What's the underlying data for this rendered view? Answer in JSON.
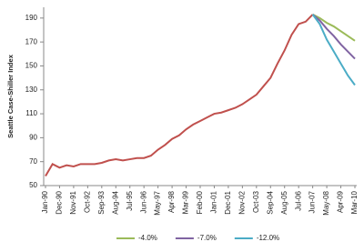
{
  "chart_data": {
    "type": "line",
    "y_label": "Seattle Case-Shiller Index",
    "categories": [
      "Jan-90",
      null,
      "Dec-90",
      null,
      "Nov-91",
      null,
      "Oct-92",
      null,
      "Sep-93",
      null,
      "Aug-94",
      null,
      "Jul-95",
      null,
      "Jun-96",
      null,
      "May-97",
      null,
      "Apr-98",
      null,
      "Mar-99",
      null,
      "Feb-00",
      null,
      "Jan-01",
      null,
      "Dec-01",
      null,
      "Nov-02",
      null,
      "Oct-03",
      null,
      "Sep-04",
      null,
      "Aug-05",
      null,
      "Jul-06",
      null,
      "Jun-07",
      null,
      "May-08",
      null,
      "Apr-09",
      null,
      "Mar-10"
    ],
    "series": [
      {
        "color": "#c0504d",
        "values": [
          58,
          68,
          65,
          67,
          66,
          68,
          68,
          68,
          69,
          71,
          72,
          71,
          72,
          73,
          73,
          75,
          80,
          84,
          89,
          92,
          97,
          101,
          104,
          107,
          110,
          111,
          113,
          115,
          118,
          122,
          126,
          133,
          140,
          152,
          163,
          176,
          185,
          187,
          193,
          null,
          null,
          null,
          null,
          null,
          null
        ]
      },
      {
        "name": "-4.0%",
        "color": "#9bbb59",
        "values": [
          null,
          null,
          null,
          null,
          null,
          null,
          null,
          null,
          null,
          null,
          null,
          null,
          null,
          null,
          null,
          null,
          null,
          null,
          null,
          null,
          null,
          null,
          null,
          null,
          null,
          null,
          null,
          null,
          null,
          null,
          null,
          null,
          null,
          null,
          null,
          null,
          null,
          null,
          193,
          190,
          186,
          183,
          179,
          175,
          171
        ]
      },
      {
        "name": "-7.0%",
        "color": "#8064a2",
        "values": [
          null,
          null,
          null,
          null,
          null,
          null,
          null,
          null,
          null,
          null,
          null,
          null,
          null,
          null,
          null,
          null,
          null,
          null,
          null,
          null,
          null,
          null,
          null,
          null,
          null,
          null,
          null,
          null,
          null,
          null,
          null,
          null,
          null,
          null,
          null,
          null,
          null,
          null,
          193,
          188,
          181,
          175,
          168,
          162,
          156
        ]
      },
      {
        "name": "-12.0%",
        "color": "#4bacc6",
        "values": [
          null,
          null,
          null,
          null,
          null,
          null,
          null,
          null,
          null,
          null,
          null,
          null,
          null,
          null,
          null,
          null,
          null,
          null,
          null,
          null,
          null,
          null,
          null,
          null,
          null,
          null,
          null,
          null,
          null,
          null,
          null,
          null,
          null,
          null,
          null,
          null,
          null,
          null,
          193,
          185,
          172,
          162,
          152,
          142,
          134
        ]
      }
    ],
    "ylim": [
      50,
      199
    ],
    "yticks": [
      50,
      70,
      90,
      110,
      130,
      150,
      170,
      190
    ],
    "legend": "bottom"
  }
}
